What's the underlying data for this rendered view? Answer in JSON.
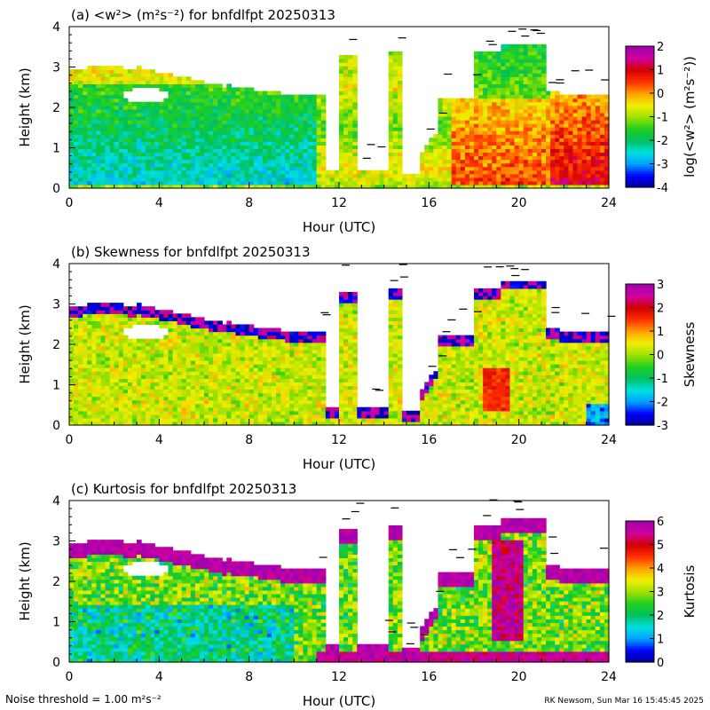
{
  "footer": {
    "noise_threshold": "Noise threshold = 1.00 m²s⁻²",
    "credit": "RK Newsom, Sun Mar 16 15:45:45 2025"
  },
  "chart_data": [
    {
      "type": "heatmap",
      "title": "(a) <w²> (m²s⁻²) for bnfdlfpt 20250313",
      "xlabel": "Hour (UTC)",
      "ylabel": "Height (km)",
      "xlim": [
        0,
        24
      ],
      "ylim": [
        0,
        4
      ],
      "xticks": [
        "0",
        "4",
        "8",
        "12",
        "16",
        "20",
        "24"
      ],
      "yticks": [
        "0",
        "1",
        "2",
        "3",
        "4"
      ],
      "colorbar": {
        "label": "log(<w²> (m²s⁻²))",
        "range": [
          -4,
          2
        ],
        "ticks": [
          "-4",
          "-3",
          "-2",
          "-1",
          "0",
          "1",
          "2"
        ]
      },
      "field": "variance"
    },
    {
      "type": "heatmap",
      "title": "(b) Skewness for bnfdlfpt 20250313",
      "xlabel": "Hour (UTC)",
      "ylabel": "Height (km)",
      "xlim": [
        0,
        24
      ],
      "ylim": [
        0,
        4
      ],
      "xticks": [
        "0",
        "4",
        "8",
        "12",
        "16",
        "20",
        "24"
      ],
      "yticks": [
        "0",
        "1",
        "2",
        "3",
        "4"
      ],
      "colorbar": {
        "label": "Skewness",
        "range": [
          -3,
          3
        ],
        "ticks": [
          "-3",
          "-2",
          "-1",
          "0",
          "1",
          "2",
          "3"
        ]
      },
      "field": "skewness"
    },
    {
      "type": "heatmap",
      "title": "(c) Kurtosis for bnfdlfpt 20250313",
      "xlabel": "Hour (UTC)",
      "ylabel": "Height (km)",
      "xlim": [
        0,
        24
      ],
      "ylim": [
        0,
        4
      ],
      "xticks": [
        "0",
        "4",
        "8",
        "12",
        "16",
        "20",
        "24"
      ],
      "yticks": [
        "0",
        "1",
        "2",
        "3",
        "4"
      ],
      "colorbar": {
        "label": "Kurtosis",
        "range": [
          0,
          6
        ],
        "ticks": [
          "0",
          "1",
          "2",
          "3",
          "4",
          "5",
          "6"
        ]
      },
      "field": "kurtosis"
    }
  ],
  "colors": {
    "colormap": [
      "#000090",
      "#0000ff",
      "#00a0ff",
      "#00e0e0",
      "#00c060",
      "#20d020",
      "#a0e000",
      "#f0f000",
      "#ffa000",
      "#ff3000",
      "#d00000",
      "#d000a0",
      "#a000b0"
    ]
  }
}
